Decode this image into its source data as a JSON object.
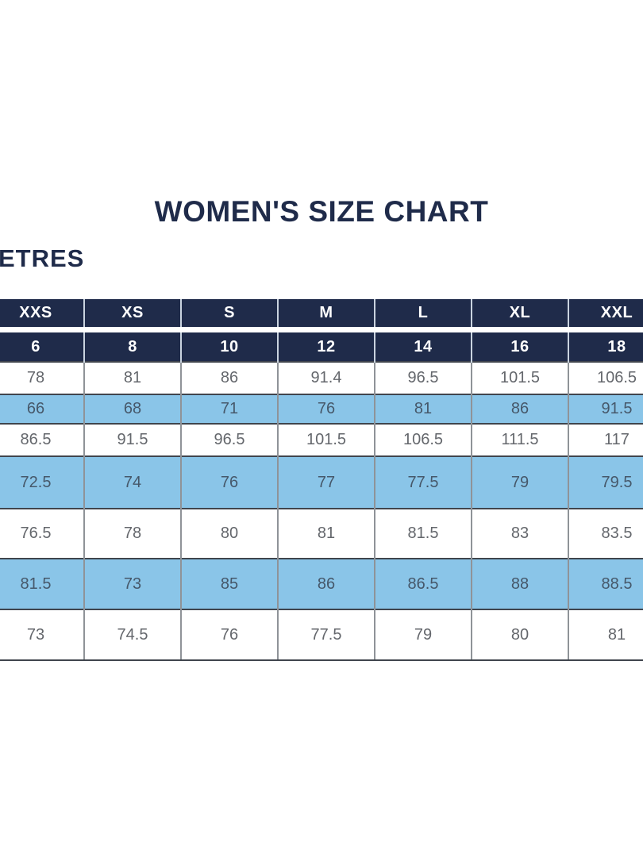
{
  "page": {
    "title": "WOMEN'S SIZE CHART",
    "unit_label": "ETRES"
  },
  "colors": {
    "header_navy": "#1f2b4a",
    "row_blue": "#8ac5e8",
    "title_navy": "#1f2b4a",
    "data_text_gray": "#64676c"
  },
  "table": {
    "size_headers": [
      "XXS",
      "XS",
      "S",
      "M",
      "L",
      "XL",
      "XXL"
    ],
    "numeric_headers": [
      "6",
      "8",
      "10",
      "12",
      "14",
      "16",
      "18"
    ],
    "rows": [
      {
        "values": [
          "78",
          "81",
          "86",
          "91.4",
          "96.5",
          "101.5",
          "106.5"
        ]
      },
      {
        "values": [
          "66",
          "68",
          "71",
          "76",
          "81",
          "86",
          "91.5"
        ]
      },
      {
        "values": [
          "86.5",
          "91.5",
          "96.5",
          "101.5",
          "106.5",
          "111.5",
          "117"
        ]
      },
      {
        "values": [
          "72.5",
          "74",
          "76",
          "77",
          "77.5",
          "79",
          "79.5"
        ]
      },
      {
        "values": [
          "76.5",
          "78",
          "80",
          "81",
          "81.5",
          "83",
          "83.5"
        ]
      },
      {
        "values": [
          "81.5",
          "73",
          "85",
          "86",
          "86.5",
          "88",
          "88.5"
        ]
      },
      {
        "values": [
          "73",
          "74.5",
          "76",
          "77.5",
          "79",
          "80",
          "81"
        ]
      }
    ]
  }
}
